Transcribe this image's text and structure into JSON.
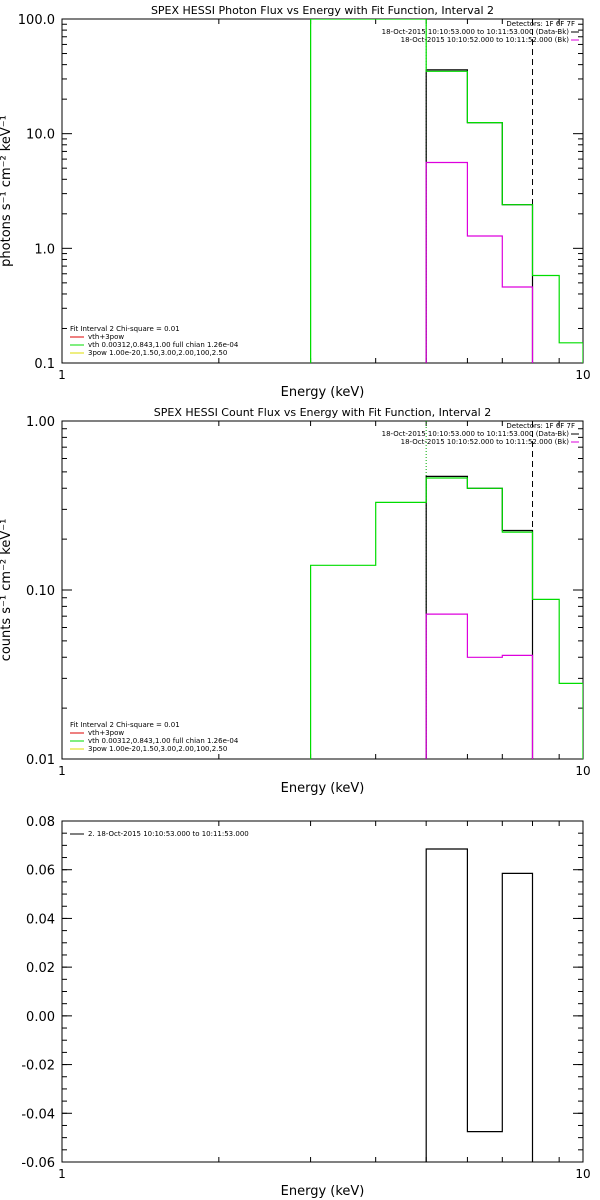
{
  "chart_data": [
    {
      "type": "line",
      "title": "SPEX HESSI Photon Flux vs Energy with Fit Function, Interval 2",
      "xlabel": "Energy (keV)",
      "ylabel": "photons s⁻¹ cm⁻² keV⁻¹",
      "xscale": "log",
      "yscale": "log",
      "xlim": [
        1,
        10
      ],
      "ylim": [
        0.1,
        100
      ],
      "xticks": [
        {
          "v": 1,
          "label": "1"
        },
        {
          "v": 10,
          "label": "10"
        }
      ],
      "yticks": [
        {
          "v": 0.1,
          "label": "0.1"
        },
        {
          "v": 1,
          "label": "1.0"
        },
        {
          "v": 10,
          "label": "10.0"
        },
        {
          "v": 100,
          "label": "100.0"
        }
      ],
      "series": [
        {
          "name": "vth+3pow",
          "color": "#000000",
          "edges": [
            5.0,
            6.0,
            7.0,
            8.0
          ],
          "values": [
            36.0,
            12.5,
            2.4
          ]
        },
        {
          "name": "vth 0.00312,0.843,1.00  full chian 1.26e-04",
          "color": "#00dd00",
          "edges": [
            3.0,
            5.0,
            6.0,
            7.0,
            8.0,
            9.0,
            10.0
          ],
          "values": [
            100.0,
            35.0,
            12.5,
            2.4,
            0.58,
            0.15
          ]
        },
        {
          "name": "3pow 1.00e-20,1.50,3.00,2.00,100,2.50",
          "color": "#dd00dd",
          "edges": [
            5.0,
            6.0,
            7.0,
            8.0
          ],
          "values": [
            5.6,
            1.28,
            0.46
          ]
        }
      ],
      "vlines": [
        {
          "x": 3.0,
          "color": "#00dd00",
          "style": "solid"
        },
        {
          "x": 5.0,
          "color": "#00aa00",
          "style": "dotted"
        },
        {
          "x": 8.0,
          "color": "#000000",
          "style": "dashed"
        }
      ],
      "detectors_text": "Detectors: 1F 6F 7F",
      "time_lines": [
        {
          "text": "18-Oct-2015 10:10:53.000 to 10:11:53.000 (Data-Bk)",
          "color": "#000000"
        },
        {
          "text": "18-Oct-2015 10:10:52.000 to 10:11:52.000 (Bk)",
          "color": "#dd00dd"
        }
      ],
      "fit_header": "Fit Interval 2   Chi-square = 0.01",
      "legend": [
        {
          "text": "vth+3pow",
          "color": "#dd0000"
        },
        {
          "text": "vth 0.00312,0.843,1.00  full chian 1.26e-04",
          "color": "#00dd00"
        },
        {
          "text": "3pow 1.00e-20,1.50,3.00,2.00,100,2.50",
          "color": "#dddd00"
        }
      ]
    },
    {
      "type": "line",
      "title": "SPEX HESSI Count Flux vs Energy with Fit Function, Interval 2",
      "xlabel": "Energy (keV)",
      "ylabel": "counts s⁻¹ cm⁻² keV⁻¹",
      "xscale": "log",
      "yscale": "log",
      "xlim": [
        1,
        10
      ],
      "ylim": [
        0.01,
        1
      ],
      "xticks": [
        {
          "v": 1,
          "label": "1"
        },
        {
          "v": 10,
          "label": "10"
        }
      ],
      "yticks": [
        {
          "v": 0.01,
          "label": "0.01"
        },
        {
          "v": 0.1,
          "label": "0.10"
        },
        {
          "v": 1,
          "label": "1.00"
        }
      ],
      "series": [
        {
          "name": "vth+3pow",
          "color": "#000000",
          "edges": [
            5.0,
            6.0,
            7.0,
            8.0
          ],
          "values": [
            0.47,
            0.4,
            0.225
          ]
        },
        {
          "name": "vth 0.00312,0.843,1.00  full chian 1.26e-04",
          "color": "#00dd00",
          "edges": [
            3.0,
            4.0,
            5.0,
            6.0,
            7.0,
            8.0,
            9.0,
            10.0
          ],
          "values": [
            0.14,
            0.33,
            0.46,
            0.4,
            0.22,
            0.088,
            0.028
          ]
        },
        {
          "name": "3pow 1.00e-20,1.50,3.00,2.00,100,2.50",
          "color": "#dd00dd",
          "edges": [
            5.0,
            6.0,
            7.0,
            8.0
          ],
          "values": [
            0.072,
            0.04,
            0.041
          ]
        }
      ],
      "vlines": [
        {
          "x": 5.0,
          "color": "#00aa00",
          "style": "dotted"
        },
        {
          "x": 8.0,
          "color": "#000000",
          "style": "dashed"
        }
      ],
      "detectors_text": "Detectors: 1F 6F 7F",
      "time_lines": [
        {
          "text": "18-Oct-2015 10:10:53.000 to 10:11:53.000 (Data-Bk)",
          "color": "#000000"
        },
        {
          "text": "18-Oct-2015 10:10:52.000 to 10:11:52.000 (Bk)",
          "color": "#dd00dd"
        }
      ],
      "fit_header": "Fit Interval 2   Chi-square = 0.01",
      "legend": [
        {
          "text": "vth+3pow",
          "color": "#dd0000"
        },
        {
          "text": "vth 0.00312,0.843,1.00  full chian 1.26e-04",
          "color": "#00dd00"
        },
        {
          "text": "3pow 1.00e-20,1.50,3.00,2.00,100,2.50",
          "color": "#dddd00"
        }
      ]
    },
    {
      "type": "line",
      "title": "",
      "xlabel": "Energy (keV)",
      "ylabel": "",
      "xscale": "log",
      "yscale": "linear",
      "xlim": [
        1,
        10
      ],
      "ylim": [
        -0.06,
        0.08
      ],
      "xticks": [
        {
          "v": 1,
          "label": "1"
        },
        {
          "v": 10,
          "label": "10"
        }
      ],
      "yticks": [
        {
          "v": -0.06,
          "label": "-0.06"
        },
        {
          "v": -0.04,
          "label": "-0.04"
        },
        {
          "v": -0.02,
          "label": "-0.02"
        },
        {
          "v": 0.0,
          "label": "0.00"
        },
        {
          "v": 0.02,
          "label": "0.02"
        },
        {
          "v": 0.04,
          "label": "0.04"
        },
        {
          "v": 0.06,
          "label": "0.06"
        },
        {
          "v": 0.08,
          "label": "0.08"
        }
      ],
      "series": [
        {
          "name": "2. 18-Oct-2015 10:10:53.000 to 10:11:53.000",
          "color": "#000000",
          "edges": [
            5.0,
            6.0,
            7.0,
            8.0
          ],
          "values": [
            0.0685,
            -0.0475,
            0.0585
          ],
          "closed": true
        }
      ],
      "vlines": [],
      "legend": [
        {
          "text": "2. 18-Oct-2015 10:10:53.000 to 10:11:53.000",
          "color": "#000000"
        }
      ]
    }
  ]
}
